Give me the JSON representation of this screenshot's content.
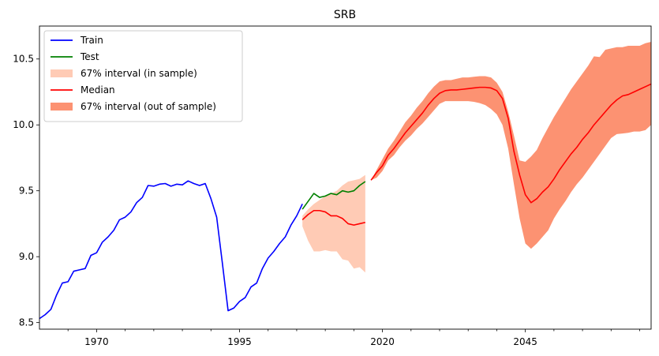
{
  "chart_data": {
    "type": "line",
    "title": "SRB",
    "xlabel": "",
    "ylabel": "",
    "xlim": [
      1960,
      2067
    ],
    "ylim": [
      8.45,
      10.75
    ],
    "x_ticks": [
      1970,
      1995,
      2020,
      2045
    ],
    "x_tick_labels": [
      "1970",
      "1995",
      "2020",
      "2045"
    ],
    "y_ticks": [
      8.5,
      9.0,
      9.5,
      10.0,
      10.5
    ],
    "y_tick_labels": [
      "8.5",
      "9.0",
      "9.5",
      "10.0",
      "10.5"
    ],
    "grid": false,
    "legend_position": "top-left",
    "legend": [
      {
        "label": "Train",
        "kind": "line",
        "color": "#0000ff"
      },
      {
        "label": "Test",
        "kind": "line",
        "color": "#008000"
      },
      {
        "label": "67% interval (in sample)",
        "kind": "band",
        "color": "#ffcbb5"
      },
      {
        "label": "Median",
        "kind": "line",
        "color": "#ff0000"
      },
      {
        "label": "67% interval (out of sample)",
        "kind": "band",
        "color": "#fc9272"
      }
    ],
    "series": [
      {
        "name": "Train",
        "color": "#0000ff",
        "x": [
          1960,
          1961,
          1962,
          1963,
          1964,
          1965,
          1966,
          1967,
          1968,
          1969,
          1970,
          1971,
          1972,
          1973,
          1974,
          1975,
          1976,
          1977,
          1978,
          1979,
          1980,
          1981,
          1982,
          1983,
          1984,
          1985,
          1986,
          1987,
          1988,
          1989,
          1990,
          1991,
          1992,
          1993,
          1994,
          1995,
          1996,
          1997,
          1998,
          1999,
          2000,
          2001,
          2002,
          2003,
          2004,
          2005,
          2006
        ],
        "y": [
          8.53,
          8.56,
          8.6,
          8.71,
          8.8,
          8.81,
          8.89,
          8.9,
          8.91,
          9.01,
          9.03,
          9.11,
          9.15,
          9.2,
          9.28,
          9.3,
          9.34,
          9.41,
          9.45,
          9.54,
          9.535,
          9.55,
          9.555,
          9.535,
          9.55,
          9.545,
          9.575,
          9.555,
          9.54,
          9.555,
          9.44,
          9.3,
          8.95,
          8.59,
          8.61,
          8.66,
          8.69,
          8.77,
          8.8,
          8.91,
          8.99,
          9.04,
          9.1,
          9.15,
          9.24,
          9.31,
          9.4
        ]
      },
      {
        "name": "Test",
        "color": "#008000",
        "x": [
          2006,
          2007,
          2008,
          2009,
          2010,
          2011,
          2012,
          2013,
          2014,
          2015,
          2016,
          2017
        ],
        "y": [
          9.36,
          9.42,
          9.48,
          9.45,
          9.46,
          9.48,
          9.47,
          9.5,
          9.49,
          9.5,
          9.54,
          9.57
        ]
      },
      {
        "name": "Median",
        "color": "#ff0000",
        "x": [
          2006,
          2007,
          2008,
          2009,
          2010,
          2011,
          2012,
          2013,
          2014,
          2015,
          2016,
          2017
        ],
        "y": [
          9.28,
          9.32,
          9.35,
          9.35,
          9.34,
          9.31,
          9.31,
          9.29,
          9.25,
          9.24,
          9.25,
          9.26
        ]
      },
      {
        "name": "67% interval (in sample)",
        "color": "#ffcbb5",
        "x": [
          2006,
          2007,
          2008,
          2009,
          2010,
          2011,
          2012,
          2013,
          2014,
          2015,
          2016,
          2017
        ],
        "lower": [
          9.23,
          9.12,
          9.04,
          9.04,
          9.05,
          9.04,
          9.04,
          8.98,
          8.97,
          8.91,
          8.92,
          8.88
        ],
        "upper": [
          9.31,
          9.36,
          9.4,
          9.43,
          9.46,
          9.48,
          9.5,
          9.54,
          9.57,
          9.58,
          9.59,
          9.62
        ]
      },
      {
        "name": "Median",
        "color": "#ff0000",
        "x": [
          2018,
          2019,
          2020,
          2021,
          2022,
          2023,
          2024,
          2025,
          2026,
          2027,
          2028,
          2029,
          2030,
          2031,
          2032,
          2033,
          2034,
          2035,
          2036,
          2037,
          2038,
          2039,
          2040,
          2041,
          2042,
          2043,
          2044,
          2045,
          2046,
          2047,
          2048,
          2049,
          2050,
          2051,
          2052,
          2053,
          2054,
          2055,
          2056,
          2057,
          2058,
          2059,
          2060,
          2061,
          2062,
          2063,
          2064,
          2065,
          2066,
          2067
        ],
        "y": [
          9.58,
          9.64,
          9.69,
          9.77,
          9.82,
          9.88,
          9.94,
          9.99,
          10.04,
          10.09,
          10.15,
          10.2,
          10.24,
          10.26,
          10.265,
          10.265,
          10.27,
          10.275,
          10.28,
          10.285,
          10.285,
          10.28,
          10.26,
          10.2,
          10.05,
          9.8,
          9.62,
          9.47,
          9.41,
          9.44,
          9.49,
          9.53,
          9.59,
          9.66,
          9.72,
          9.78,
          9.83,
          9.89,
          9.94,
          10.0,
          10.05,
          10.1,
          10.15,
          10.19,
          10.22,
          10.23,
          10.25,
          10.27,
          10.29,
          10.31
        ]
      },
      {
        "name": "67% interval (out of sample)",
        "color": "#fc9272",
        "x": [
          2018,
          2019,
          2020,
          2021,
          2022,
          2023,
          2024,
          2025,
          2026,
          2027,
          2028,
          2029,
          2030,
          2031,
          2032,
          2033,
          2034,
          2035,
          2036,
          2037,
          2038,
          2039,
          2040,
          2041,
          2042,
          2043,
          2044,
          2045,
          2046,
          2047,
          2048,
          2049,
          2050,
          2051,
          2052,
          2053,
          2054,
          2055,
          2056,
          2057,
          2058,
          2059,
          2060,
          2061,
          2062,
          2063,
          2064,
          2065,
          2066,
          2067
        ],
        "lower": [
          9.58,
          9.6,
          9.65,
          9.73,
          9.77,
          9.83,
          9.88,
          9.92,
          9.97,
          10.01,
          10.06,
          10.11,
          10.16,
          10.18,
          10.18,
          10.18,
          10.18,
          10.18,
          10.175,
          10.165,
          10.15,
          10.12,
          10.08,
          10.0,
          9.82,
          9.55,
          9.29,
          9.1,
          9.06,
          9.1,
          9.15,
          9.2,
          9.29,
          9.36,
          9.42,
          9.49,
          9.55,
          9.6,
          9.66,
          9.72,
          9.78,
          9.84,
          9.9,
          9.93,
          9.935,
          9.94,
          9.95,
          9.95,
          9.96,
          10.0
        ],
        "upper": [
          9.58,
          9.66,
          9.74,
          9.82,
          9.88,
          9.95,
          10.02,
          10.07,
          10.13,
          10.18,
          10.24,
          10.29,
          10.33,
          10.34,
          10.34,
          10.35,
          10.36,
          10.36,
          10.365,
          10.37,
          10.37,
          10.36,
          10.32,
          10.25,
          10.1,
          9.92,
          9.73,
          9.72,
          9.76,
          9.81,
          9.9,
          9.98,
          10.06,
          10.13,
          10.2,
          10.27,
          10.33,
          10.39,
          10.45,
          10.52,
          10.515,
          10.57,
          10.58,
          10.59,
          10.59,
          10.6,
          10.6,
          10.6,
          10.62,
          10.63
        ]
      }
    ]
  }
}
